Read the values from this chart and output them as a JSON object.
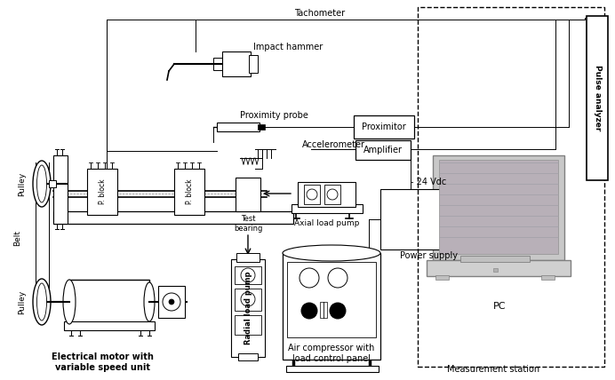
{
  "bg_color": "#ffffff",
  "labels": {
    "tachometer": "Tachometer",
    "impact_hammer": "Impact hammer",
    "proximity_probe": "Proximity probe",
    "accelerometer": "Accelerometer",
    "proximitor": "Proximitor",
    "amplifier": "Amplifier",
    "test_bearing": "Test\nbearing",
    "axial_load_pump": "Axial load pump",
    "power_supply": "Power supply",
    "vdc": "- 24 Vdc",
    "radial_load_pump": "Radial load pump",
    "air_compressor": "Air compressor with\nload control panel",
    "pulse_analyzer": "Pulse analyzer",
    "pc": "PC",
    "measurement_station": "Measurement station",
    "motor": "Electrical motor with\nvariable speed unit",
    "pulley_top": "Pulley",
    "pulley_bottom": "Pulley",
    "belt": "Belt",
    "p_block1": "P. block",
    "p_block2": "P. block"
  }
}
